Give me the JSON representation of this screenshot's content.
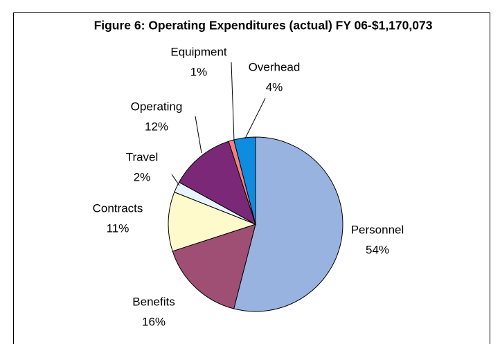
{
  "chart_data": {
    "type": "pie",
    "title": "Figure 6: Operating Expenditures (actual) FY 06-$1,170,073",
    "categories": [
      "Personnel",
      "Benefits",
      "Contracts",
      "Travel",
      "Operating",
      "Equipment",
      "Overhead"
    ],
    "values": [
      54,
      16,
      11,
      2,
      12,
      1,
      4
    ],
    "value_labels": [
      "54%",
      "16%",
      "11%",
      "2%",
      "12%",
      "1%",
      "4%"
    ],
    "colors": [
      "#99b3e0",
      "#9e4f73",
      "#fffacc",
      "#e8f4fb",
      "#7b2878",
      "#f08080",
      "#0e8ce0"
    ]
  }
}
